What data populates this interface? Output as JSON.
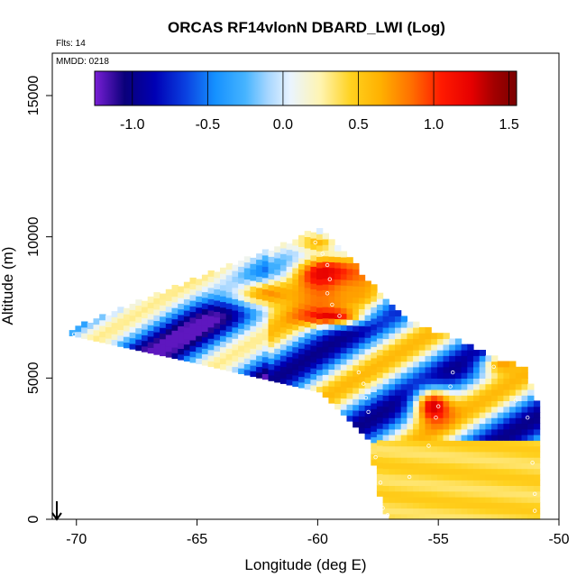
{
  "chart_data": {
    "type": "heatmap",
    "title": "ORCAS RF14vlonN DBARD_LWI (Log)",
    "notes": {
      "flights": "Flts: 14",
      "date": "MMDD: 0218"
    },
    "xlabel": "Longitude (deg E)",
    "ylabel": "Altitude (m)",
    "xlim": [
      -71,
      -50
    ],
    "ylim": [
      0,
      16500
    ],
    "xticks": [
      "-70",
      "-65",
      "-60",
      "-55",
      "-50"
    ],
    "xtick_values": [
      -70,
      -65,
      -60,
      -55,
      -50
    ],
    "yticks": [
      "0",
      "5000",
      "10000",
      "15000"
    ],
    "ytick_values": [
      0,
      5000,
      10000,
      15000
    ],
    "colorbar": {
      "range": [
        -1.25,
        1.55
      ],
      "tick_labels": [
        "-1.0",
        "-0.5",
        "0.0",
        "0.5",
        "1.0",
        "1.5"
      ],
      "tick_values": [
        -1.0,
        -0.5,
        0.0,
        0.5,
        1.0,
        1.5
      ],
      "stops": [
        {
          "v": -1.25,
          "c": "#7a1fd6"
        },
        {
          "v": -1.05,
          "c": "#0a007a"
        },
        {
          "v": -0.85,
          "c": "#0000b4"
        },
        {
          "v": -0.65,
          "c": "#0a3fe0"
        },
        {
          "v": -0.45,
          "c": "#1591ff"
        },
        {
          "v": -0.25,
          "c": "#46b4ff"
        },
        {
          "v": -0.1,
          "c": "#a6d6ff"
        },
        {
          "v": 0.05,
          "c": "#eaf4ff"
        },
        {
          "v": 0.25,
          "c": "#fff4b0"
        },
        {
          "v": 0.45,
          "c": "#ffd21f"
        },
        {
          "v": 0.65,
          "c": "#ffb000"
        },
        {
          "v": 0.85,
          "c": "#ff7000"
        },
        {
          "v": 1.05,
          "c": "#ff1a00"
        },
        {
          "v": 1.25,
          "c": "#e60000"
        },
        {
          "v": 1.4,
          "c": "#a30000"
        },
        {
          "v": 1.55,
          "c": "#7a0000"
        }
      ]
    },
    "grid": false,
    "region": {
      "x_range": [
        -70.3,
        -51.0
      ],
      "upper_boundary": [
        [
          -70.3,
          6700
        ],
        [
          -60.0,
          10200
        ],
        [
          -56.5,
          7000
        ],
        [
          -54.5,
          6300
        ],
        [
          -51.5,
          5200
        ],
        [
          -51.0,
          4000
        ]
      ],
      "lower_boundary": [
        [
          -70.3,
          6500
        ],
        [
          -65.0,
          5500
        ],
        [
          -60.0,
          4500
        ],
        [
          -58.0,
          2800
        ],
        [
          -57.5,
          600
        ],
        [
          -57.2,
          0
        ],
        [
          -51.0,
          0
        ]
      ]
    },
    "features": [
      {
        "x": -59.7,
        "y": 8600,
        "sx": 1.6,
        "sy": 900,
        "v": 1.45
      },
      {
        "x": -62.0,
        "y": 8000,
        "sx": 2.0,
        "sy": 600,
        "v": 0.75
      },
      {
        "x": -58.5,
        "y": 8000,
        "sx": 1.5,
        "sy": 700,
        "v": 0.7
      },
      {
        "x": -59.5,
        "y": 7200,
        "sx": 1.3,
        "sy": 300,
        "v": 1.25
      },
      {
        "x": -55.2,
        "y": 4000,
        "sx": 0.8,
        "sy": 650,
        "v": 1.3
      },
      {
        "x": -52.3,
        "y": 5500,
        "sx": 0.9,
        "sy": 400,
        "v": 0.7
      },
      {
        "x": -60.0,
        "y": 9800,
        "sx": 1.0,
        "sy": 400,
        "v": 0.6
      }
    ],
    "track_points": [
      [
        -70.1,
        6550
      ],
      [
        -60.1,
        9800
      ],
      [
        -59.8,
        9400
      ],
      [
        -59.6,
        9000
      ],
      [
        -59.5,
        8500
      ],
      [
        -59.6,
        8000
      ],
      [
        -59.4,
        7600
      ],
      [
        -59.1,
        7200
      ],
      [
        -58.3,
        5200
      ],
      [
        -58.1,
        4800
      ],
      [
        -58.0,
        4300
      ],
      [
        -57.9,
        3800
      ],
      [
        -57.6,
        2200
      ],
      [
        -57.4,
        1300
      ],
      [
        -57.3,
        400
      ],
      [
        -57.1,
        150
      ],
      [
        -56.2,
        1500
      ],
      [
        -55.4,
        2600
      ],
      [
        -55.1,
        3600
      ],
      [
        -55.0,
        4000
      ],
      [
        -54.5,
        4700
      ],
      [
        -54.4,
        5200
      ],
      [
        -53.6,
        6300
      ],
      [
        -53.1,
        6800
      ],
      [
        -52.7,
        5400
      ],
      [
        -51.8,
        4200
      ],
      [
        -51.3,
        3600
      ],
      [
        -51.1,
        2000
      ],
      [
        -51.0,
        900
      ],
      [
        -51.0,
        300
      ]
    ]
  }
}
